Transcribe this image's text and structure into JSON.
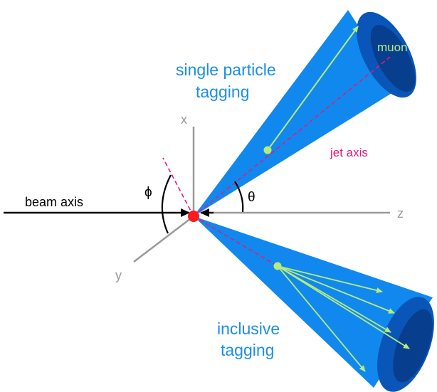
{
  "labels": {
    "single_particle_line1": "single particle",
    "single_particle_line2": "tagging",
    "inclusive_line1": "inclusive",
    "inclusive_line2": "tagging",
    "muon": "muon",
    "jet_axis": "jet axis",
    "beam_axis": "beam axis",
    "axis_x": "x",
    "axis_y": "y",
    "axis_z": "z",
    "angle_phi": "ϕ",
    "angle_theta": "θ"
  },
  "colors": {
    "cone_fill": "#1188ee",
    "cone_end": "#0a55b8",
    "cone_end_dark": "#073e8e",
    "track_green": "#b6ec7c",
    "jet_axis_magenta": "#e6197a",
    "label_blue": "#1c8ee6",
    "axis_gray": "#999999",
    "interaction_point": "#ff1a1a"
  }
}
